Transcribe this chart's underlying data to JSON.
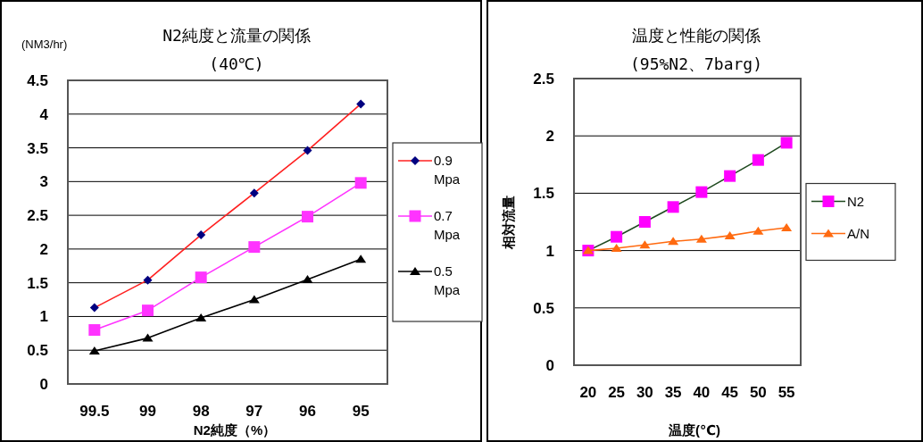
{
  "chart_data": [
    {
      "type": "line",
      "title": "N2純度と流量の関係",
      "subtitle": "(40℃)",
      "ylabel": "(NM3/hr)",
      "xlabel": "N2純度（%）",
      "categories": [
        "99.5",
        "99",
        "98",
        "97",
        "96",
        "95"
      ],
      "series": [
        {
          "name": "0.9 Mpa",
          "color": "#ff2020",
          "marker": "diamond",
          "colors": [
            "#000080",
            "#000080",
            "#000080",
            "#000080",
            "#000080",
            "#000080"
          ],
          "values": [
            1.13,
            1.54,
            2.21,
            2.83,
            3.46,
            4.15
          ]
        },
        {
          "name": "0.7 Mpa",
          "color": "#ff33ff",
          "marker": "square",
          "values": [
            0.8,
            1.09,
            1.58,
            2.03,
            2.48,
            2.98
          ]
        },
        {
          "name": "0.5 Mpa",
          "color": "#000000",
          "marker": "triangle",
          "values": [
            0.49,
            0.68,
            0.98,
            1.25,
            1.55,
            1.85
          ]
        }
      ],
      "ylim": [
        0,
        4.5
      ],
      "yticks": [
        0,
        0.5,
        1,
        1.5,
        2,
        2.5,
        3,
        3.5,
        4,
        4.5
      ],
      "grid": "y",
      "legend": "right"
    },
    {
      "type": "line",
      "title": "温度と性能の関係",
      "subtitle": "(95%N2、7barg)",
      "ylabel": "相対流量",
      "xlabel": "温度(℃)",
      "categories": [
        "20",
        "25",
        "30",
        "35",
        "40",
        "45",
        "50",
        "55"
      ],
      "series": [
        {
          "name": "N2",
          "color": "#1f4a1f",
          "marker": "square",
          "colors": [
            "#ff00ff",
            "#ff00ff",
            "#ff00ff",
            "#ff00ff",
            "#ff00ff",
            "#ff00ff",
            "#ff00ff",
            "#ff00ff"
          ],
          "values": [
            1,
            1.12,
            1.25,
            1.38,
            1.51,
            1.65,
            1.79,
            1.94
          ]
        },
        {
          "name": "A/N",
          "color": "#ff6a10",
          "marker": "triangle",
          "values": [
            1,
            1.02,
            1.05,
            1.08,
            1.1,
            1.13,
            1.17,
            1.2
          ]
        }
      ],
      "ylim": [
        0,
        2.5
      ],
      "yticks": [
        0,
        0.5,
        1,
        1.5,
        2,
        2.5
      ],
      "grid": "y",
      "legend": "right"
    }
  ]
}
